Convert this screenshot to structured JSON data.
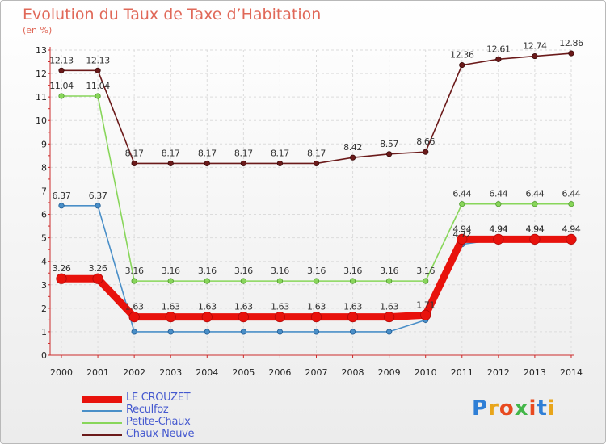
{
  "chart_data": {
    "type": "line",
    "title": "Evolution du Taux de Taxe d’Habitation",
    "ylabel": "(en %)",
    "ylim": [
      0,
      13
    ],
    "yticks": [
      0,
      1,
      2,
      3,
      4,
      5,
      6,
      7,
      8,
      9,
      10,
      11,
      12,
      13
    ],
    "x": [
      "2000",
      "2001",
      "2002",
      "2003",
      "2004",
      "2005",
      "2006",
      "2007",
      "2008",
      "2009",
      "2010",
      "2011",
      "2012",
      "2013",
      "2014"
    ],
    "grid": true,
    "legend": "bottom-left",
    "series": [
      {
        "name": "Chaux-Neuve",
        "color": "#6b1a1a",
        "values": [
          12.13,
          12.13,
          8.17,
          8.17,
          8.17,
          8.17,
          8.17,
          8.17,
          8.42,
          8.57,
          8.66,
          12.36,
          12.61,
          12.74,
          12.86
        ],
        "labels": [
          "12.13",
          "12.13",
          "8.17",
          "8.17",
          "8.17",
          "8.17",
          "8.17",
          "8.17",
          "8.42",
          "8.57",
          "8.66",
          "12.36",
          "12.61",
          "12.74",
          "12.86"
        ]
      },
      {
        "name": "Petite-Chaux",
        "color": "#88d65a",
        "values": [
          11.04,
          11.04,
          3.16,
          3.16,
          3.16,
          3.16,
          3.16,
          3.16,
          3.16,
          3.16,
          3.16,
          6.44,
          6.44,
          6.44,
          6.44
        ],
        "labels": [
          "11.04",
          "11.04",
          "3.16",
          "3.16",
          "3.16",
          "3.16",
          "3.16",
          "3.16",
          "3.16",
          "3.16",
          "3.16",
          "6.44",
          "6.44",
          "6.44",
          "6.44"
        ]
      },
      {
        "name": "Reculfoz",
        "color": "#4a8fc8",
        "values": [
          6.37,
          6.37,
          1.0,
          1.0,
          1.0,
          1.0,
          1.0,
          1.0,
          1.0,
          1.0,
          1.5,
          4.72,
          4.94,
          4.94,
          4.94
        ],
        "labels": [
          "6.37",
          "6.37",
          "",
          "",
          "",
          "",
          "",
          "",
          "",
          "",
          "",
          "4.72",
          "4.94",
          "4.94",
          "4.94"
        ]
      },
      {
        "name": "LE CROUZET",
        "color": "#e8120c",
        "values": [
          3.26,
          3.26,
          1.63,
          1.63,
          1.63,
          1.63,
          1.63,
          1.63,
          1.63,
          1.63,
          1.71,
          4.94,
          4.94,
          4.94,
          4.94
        ],
        "labels": [
          "3.26",
          "3.26",
          "1.63",
          "1.63",
          "1.63",
          "1.63",
          "1.63",
          "1.63",
          "1.63",
          "1.63",
          "1.71",
          "4.94",
          "4.94",
          "4.94",
          "4.94"
        ]
      }
    ]
  },
  "legend_items": [
    "LE CROUZET",
    "Reculfoz",
    "Petite-Chaux",
    "Chaux-Neuve"
  ],
  "brand": {
    "logo_text": "Proxiti",
    "colors": [
      "#2f7fd6",
      "#e8a51b",
      "#e84a1f",
      "#43b649",
      "#e84a1f",
      "#2f7fd6",
      "#e8a51b"
    ]
  }
}
